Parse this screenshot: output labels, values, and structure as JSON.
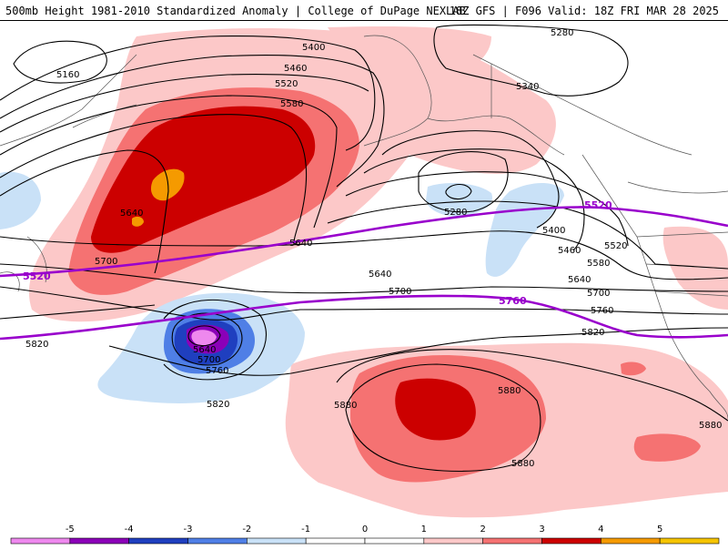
{
  "header": {
    "left_title": "500mb Height 1981-2010 Standardized Anomaly | College of DuPage NEXLAB",
    "right_title": "18Z GFS | F096 Valid: 18Z FRI MAR 28 2025"
  },
  "map": {
    "background": "#ffffff",
    "contour_labels": {
      "c5160": "5160",
      "c5400": "5400",
      "c5460_top": "5460",
      "c5520_top": "5520",
      "c5580_top": "5580",
      "c5640_left": "5640",
      "c5640_mid": "5640",
      "c5700_left": "5700",
      "c5280_top": "5280",
      "c5340": "5340",
      "c5280_low": "5280",
      "c5400_right": "5400",
      "c5460_right": "5460",
      "c5520_right": "5520",
      "c5580_right": "5580",
      "c5640_right": "5640",
      "c5700_right": "5700",
      "c5760_right": "5760",
      "c5820_right": "5820",
      "c5640_center": "5640",
      "c5700_center": "5700",
      "c5640_low": "5640",
      "c5700_low": "5700",
      "c5760_low": "5760",
      "c5820_low": "5820",
      "c5820_left": "5820",
      "c5880_left": "5880",
      "c5880_mid": "5880",
      "c5880_bot": "5880",
      "c5880_right": "5880"
    },
    "climo_labels": {
      "purple5520_left": "5520",
      "purple5520_right": "5520",
      "purple5760": "5760"
    },
    "colors": {
      "anomaly_pos_1": "#fcc8c8",
      "anomaly_pos_2": "#f57272",
      "anomaly_pos_3": "#cc0000",
      "anomaly_pos_4": "#f59a00",
      "anomaly_neg_1": "#c9e1f7",
      "anomaly_neg_2": "#4f7fe6",
      "anomaly_neg_3": "#1f3fbf",
      "anomaly_neg_4": "#8b00b8",
      "anomaly_neg_5": "#ee88ee",
      "climo_line": "#9900cc",
      "contour": "#000000",
      "coast": "#555555"
    }
  },
  "legend": {
    "ticks": [
      "-5",
      "-4",
      "-3",
      "-2",
      "-1",
      "0",
      "1",
      "2",
      "3",
      "4",
      "5"
    ],
    "colors": [
      "#ee88ee",
      "#8b00b8",
      "#1f3fbf",
      "#4f7fe6",
      "#c9e1f7",
      "#ffffff",
      "#ffffff",
      "#fcc8c8",
      "#f57272",
      "#cc0000",
      "#f59a00",
      "#f5c400"
    ]
  }
}
